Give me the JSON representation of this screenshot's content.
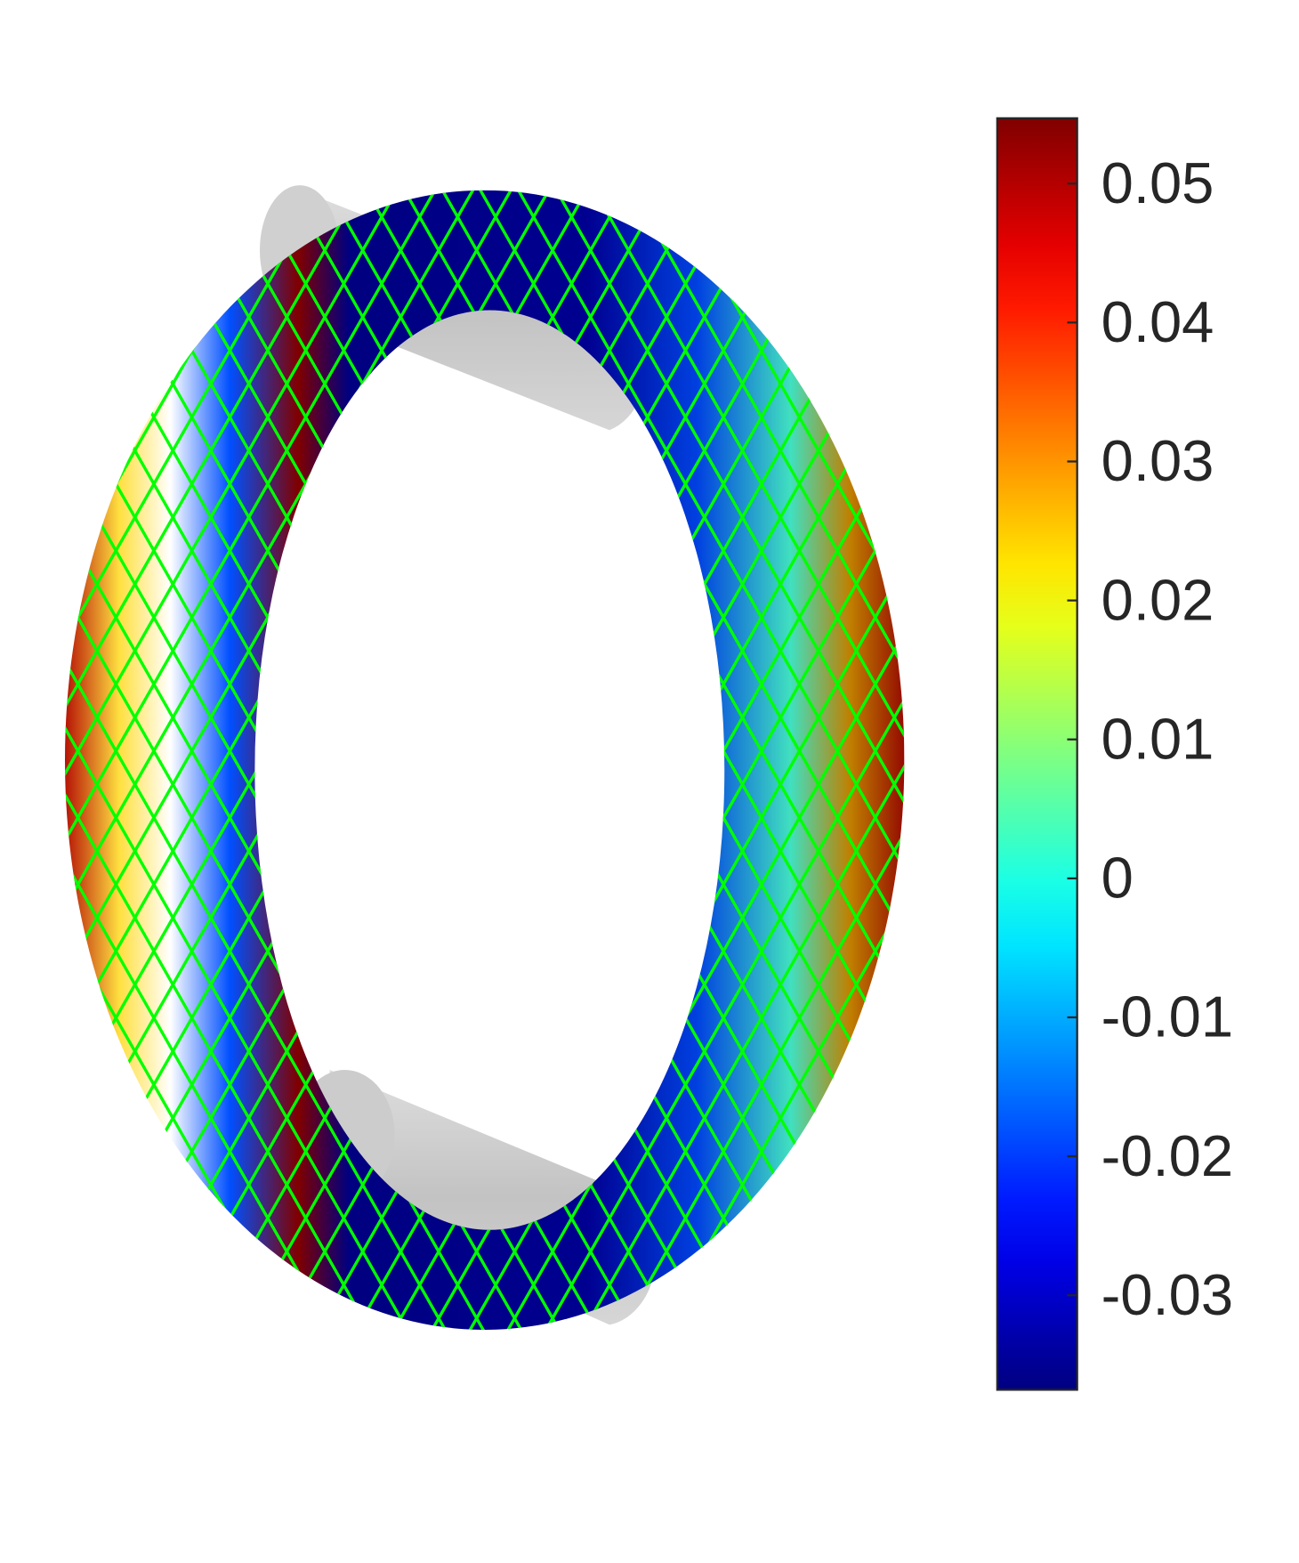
{
  "chart_data": {
    "type": "surface",
    "colormap": "jet",
    "clim": [
      -0.0368,
      0.0547
    ],
    "cticks": [
      -0.03,
      -0.02,
      -0.01,
      0,
      0.01,
      0.02,
      0.03,
      0.04,
      0.05
    ],
    "mesh_color": "#00ff00"
  }
}
